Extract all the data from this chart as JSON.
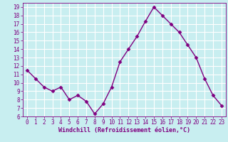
{
  "x": [
    0,
    1,
    2,
    3,
    4,
    5,
    6,
    7,
    8,
    9,
    10,
    11,
    12,
    13,
    14,
    15,
    16,
    17,
    18,
    19,
    20,
    21,
    22,
    23
  ],
  "y": [
    11.5,
    10.5,
    9.5,
    9.0,
    9.5,
    8.0,
    8.5,
    7.8,
    6.3,
    7.5,
    9.5,
    12.5,
    14.0,
    15.5,
    17.3,
    19.0,
    18.0,
    17.0,
    16.0,
    14.5,
    13.0,
    10.5,
    8.5,
    7.3
  ],
  "line_color": "#800080",
  "marker": "D",
  "marker_size": 2.5,
  "bg_color": "#c8eef0",
  "grid_color": "#ffffff",
  "xlabel": "Windchill (Refroidissement éolien,°C)",
  "xlabel_color": "#800080",
  "tick_color": "#800080",
  "ylim": [
    6,
    19.5
  ],
  "xlim": [
    -0.5,
    23.5
  ],
  "yticks": [
    6,
    7,
    8,
    9,
    10,
    11,
    12,
    13,
    14,
    15,
    16,
    17,
    18,
    19
  ],
  "xticks": [
    0,
    1,
    2,
    3,
    4,
    5,
    6,
    7,
    8,
    9,
    10,
    11,
    12,
    13,
    14,
    15,
    16,
    17,
    18,
    19,
    20,
    21,
    22,
    23
  ],
  "line_width": 1.0,
  "tick_fontsize": 5.5,
  "xlabel_fontsize": 6.0
}
